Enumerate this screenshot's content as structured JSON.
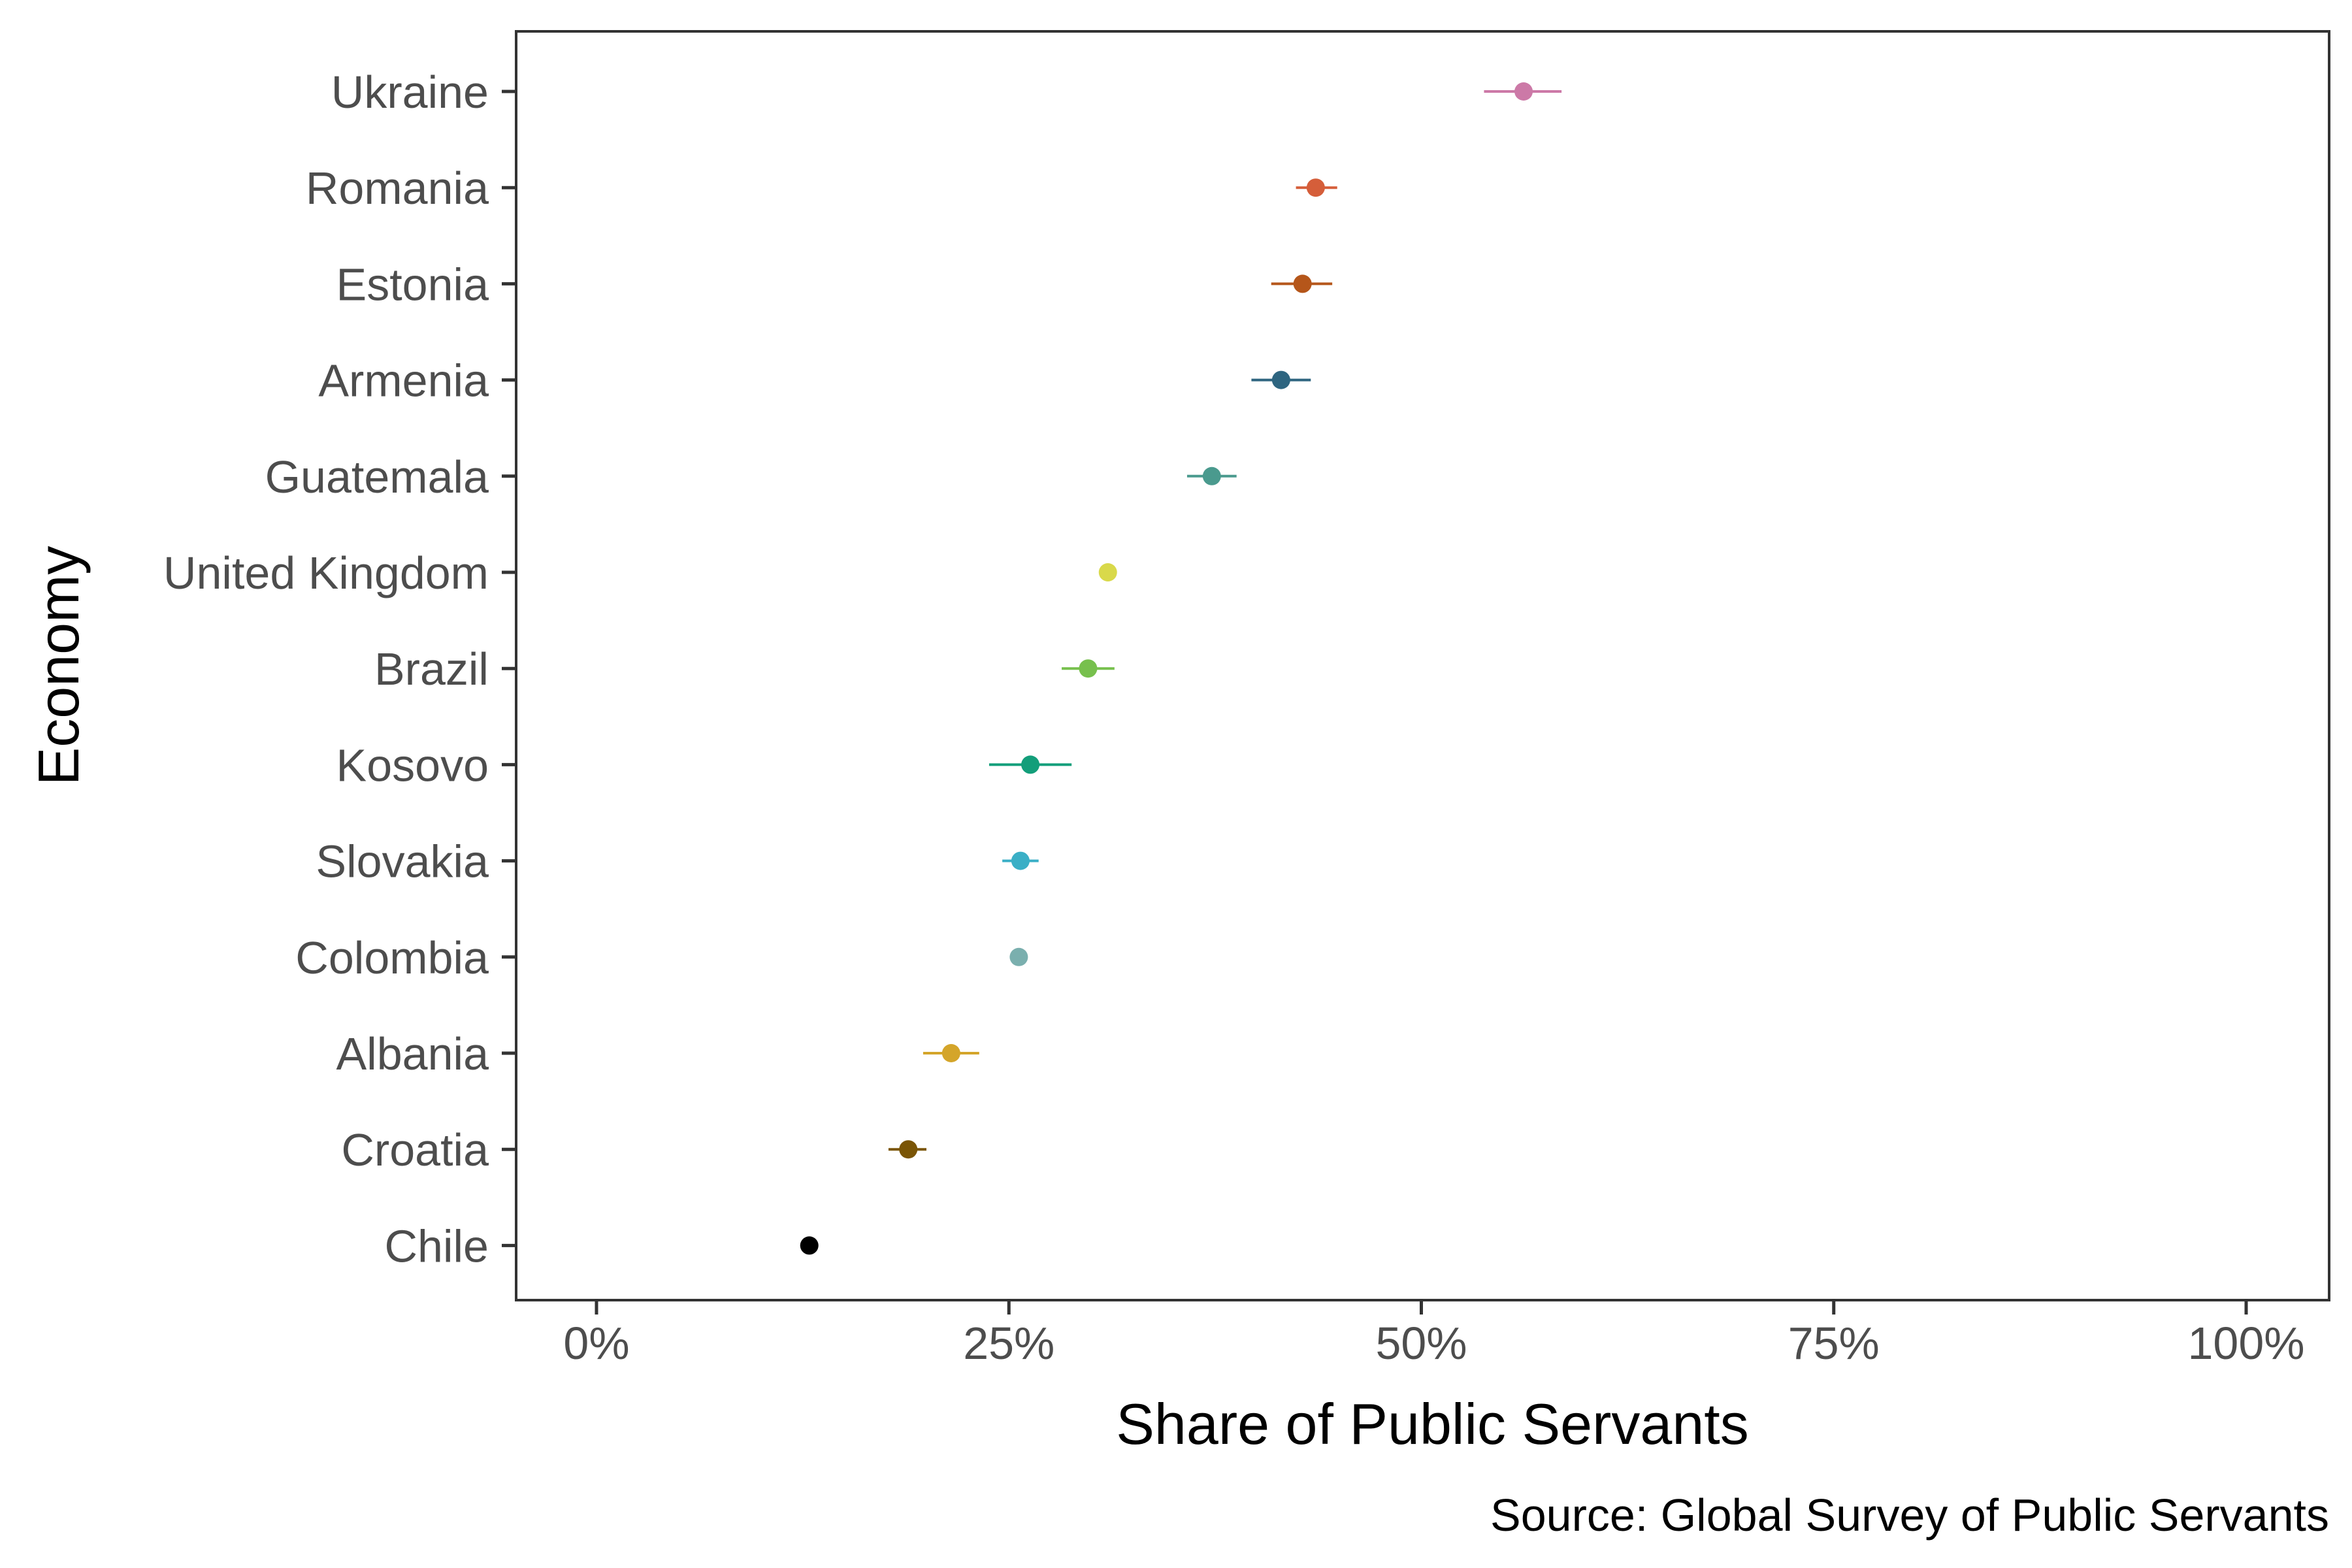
{
  "chart_data": {
    "type": "scatter",
    "title": "",
    "xlabel": "Share of Public Servants",
    "ylabel": "Economy",
    "caption": "Source: Global Survey of Public Servants",
    "xlim": [
      0,
      1
    ],
    "x_ticks": [
      0,
      0.25,
      0.5,
      0.75,
      1
    ],
    "x_tick_labels": [
      "0%",
      "25%",
      "50%",
      "75%",
      "100%"
    ],
    "grid": false,
    "legend": "none",
    "points": [
      {
        "economy": "Ukraine",
        "value": 0.562,
        "low": 0.538,
        "high": 0.585,
        "color": "#CC79A7"
      },
      {
        "economy": "Romania",
        "value": 0.436,
        "low": 0.424,
        "high": 0.449,
        "color": "#D55E3A"
      },
      {
        "economy": "Estonia",
        "value": 0.428,
        "low": 0.409,
        "high": 0.446,
        "color": "#B5561A"
      },
      {
        "economy": "Armenia",
        "value": 0.415,
        "low": 0.397,
        "high": 0.433,
        "color": "#2E6580"
      },
      {
        "economy": "Guatemala",
        "value": 0.373,
        "low": 0.358,
        "high": 0.388,
        "color": "#4A9A8E"
      },
      {
        "economy": "United Kingdom",
        "value": 0.31,
        "low": 0.306,
        "high": 0.313,
        "color": "#D9D94A"
      },
      {
        "economy": "Brazil",
        "value": 0.298,
        "low": 0.282,
        "high": 0.314,
        "color": "#77C04D"
      },
      {
        "economy": "Kosovo",
        "value": 0.263,
        "low": 0.238,
        "high": 0.288,
        "color": "#139E7A"
      },
      {
        "economy": "Slovakia",
        "value": 0.257,
        "low": 0.246,
        "high": 0.268,
        "color": "#3AAFC6"
      },
      {
        "economy": "Colombia",
        "value": 0.256,
        "low": 0.253,
        "high": 0.259,
        "color": "#7AAFAE"
      },
      {
        "economy": "Albania",
        "value": 0.215,
        "low": 0.198,
        "high": 0.232,
        "color": "#D4A52A"
      },
      {
        "economy": "Croatia",
        "value": 0.189,
        "low": 0.177,
        "high": 0.2,
        "color": "#7A5506"
      },
      {
        "economy": "Chile",
        "value": 0.129,
        "low": 0.127,
        "high": 0.131,
        "color": "#000000"
      }
    ]
  }
}
